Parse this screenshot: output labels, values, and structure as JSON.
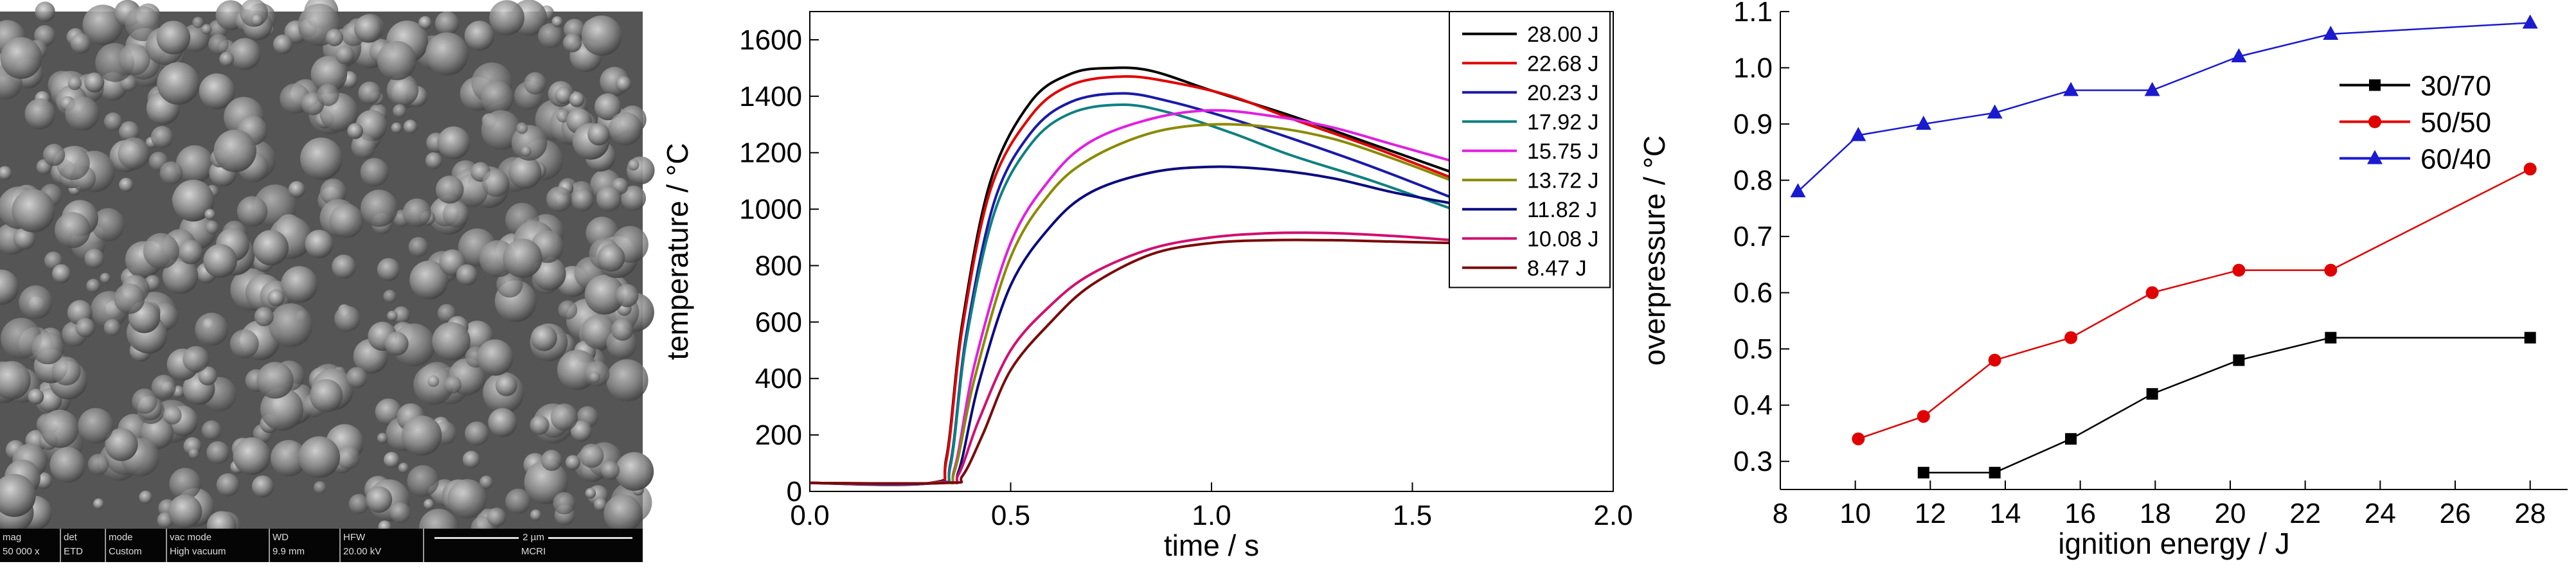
{
  "sem": {
    "info_labels": [
      "mag",
      "det",
      "mode",
      "vac mode",
      "WD",
      "HFW"
    ],
    "info_values": [
      "50 000 x",
      "ETD",
      "Custom",
      "High vacuum",
      "9.9 mm",
      "20.00 kV"
    ],
    "scale_label": "2 µm",
    "institution": "MCRI"
  },
  "chart_data": [
    {
      "type": "line",
      "xlabel": "time / s",
      "ylabel": "temperature / °C",
      "xlim": [
        0.0,
        2.0
      ],
      "ylim": [
        0,
        1700
      ],
      "xticks": [
        "0.0",
        "0.5",
        "1.0",
        "1.5",
        "2.0"
      ],
      "yticks": [
        "0",
        "200",
        "400",
        "600",
        "800",
        "1000",
        "1200",
        "1400",
        "1600"
      ],
      "legend_position": "top-right",
      "series": [
        {
          "name": "28.00 J",
          "color": "#000000",
          "x": [
            0,
            0.3,
            0.34,
            0.38,
            0.45,
            0.55,
            0.65,
            0.75,
            0.85,
            1.0,
            1.2,
            1.4,
            1.6
          ],
          "y": [
            30,
            30,
            120,
            600,
            1100,
            1380,
            1480,
            1500,
            1490,
            1420,
            1330,
            1230,
            1130
          ]
        },
        {
          "name": "22.68 J",
          "color": "#e00000",
          "x": [
            0,
            0.3,
            0.34,
            0.38,
            0.45,
            0.55,
            0.65,
            0.78,
            0.9,
            1.05,
            1.2,
            1.4,
            1.6
          ],
          "y": [
            30,
            30,
            110,
            580,
            1070,
            1330,
            1440,
            1470,
            1450,
            1400,
            1320,
            1220,
            1110
          ]
        },
        {
          "name": "20.23 J",
          "color": "#1a1aa8",
          "x": [
            0,
            0.31,
            0.35,
            0.39,
            0.46,
            0.55,
            0.65,
            0.78,
            0.9,
            1.05,
            1.2,
            1.4,
            1.6
          ],
          "y": [
            30,
            30,
            100,
            560,
            1030,
            1270,
            1380,
            1410,
            1380,
            1320,
            1250,
            1150,
            1040
          ]
        },
        {
          "name": "17.92 J",
          "color": "#0f8080",
          "x": [
            0,
            0.31,
            0.35,
            0.39,
            0.46,
            0.55,
            0.65,
            0.78,
            0.9,
            1.05,
            1.2,
            1.4,
            1.6
          ],
          "y": [
            30,
            30,
            90,
            540,
            990,
            1230,
            1340,
            1370,
            1340,
            1270,
            1190,
            1100,
            1000
          ]
        },
        {
          "name": "15.75 J",
          "color": "#e020e0",
          "x": [
            0,
            0.32,
            0.36,
            0.41,
            0.5,
            0.6,
            0.7,
            0.85,
            1.0,
            1.15,
            1.3,
            1.45,
            1.6
          ],
          "y": [
            30,
            30,
            80,
            450,
            880,
            1110,
            1240,
            1320,
            1350,
            1330,
            1290,
            1230,
            1170
          ]
        },
        {
          "name": "13.72 J",
          "color": "#8a8a00",
          "x": [
            0,
            0.32,
            0.36,
            0.41,
            0.5,
            0.6,
            0.7,
            0.85,
            1.0,
            1.15,
            1.3,
            1.45,
            1.6
          ],
          "y": [
            30,
            30,
            70,
            400,
            830,
            1060,
            1180,
            1270,
            1300,
            1290,
            1250,
            1180,
            1100
          ]
        },
        {
          "name": "11.82 J",
          "color": "#0b0b80",
          "x": [
            0,
            0.33,
            0.37,
            0.42,
            0.5,
            0.6,
            0.7,
            0.85,
            1.0,
            1.15,
            1.3,
            1.45,
            1.6
          ],
          "y": [
            30,
            30,
            70,
            380,
            730,
            940,
            1060,
            1130,
            1150,
            1140,
            1110,
            1060,
            1020
          ]
        },
        {
          "name": "10.08 J",
          "color": "#d01070",
          "x": [
            0,
            0.33,
            0.37,
            0.42,
            0.5,
            0.6,
            0.7,
            0.85,
            1.0,
            1.15,
            1.3,
            1.45,
            1.6
          ],
          "y": [
            30,
            30,
            60,
            250,
            500,
            660,
            770,
            860,
            900,
            915,
            915,
            905,
            890
          ]
        },
        {
          "name": "8.47 J",
          "color": "#7a0a0a",
          "x": [
            0,
            0.34,
            0.38,
            0.43,
            0.5,
            0.6,
            0.7,
            0.85,
            1.0,
            1.15,
            1.3,
            1.45,
            1.6
          ],
          "y": [
            30,
            30,
            55,
            200,
            430,
            600,
            730,
            840,
            880,
            890,
            890,
            885,
            880
          ]
        }
      ]
    },
    {
      "type": "line",
      "xlabel": "ignition energy / J",
      "ylabel": "overpressure / °C",
      "xlim": [
        8,
        29
      ],
      "ylim": [
        0.25,
        1.1
      ],
      "xticks": [
        "8",
        "10",
        "12",
        "14",
        "16",
        "18",
        "20",
        "22",
        "24",
        "26",
        "28"
      ],
      "yticks": [
        "0.3",
        "0.4",
        "0.5",
        "0.6",
        "0.7",
        "0.8",
        "0.9",
        "1.0",
        "1.1"
      ],
      "legend_position": "top-right",
      "series": [
        {
          "name": "30/70",
          "color": "#000000",
          "marker": "square",
          "x": [
            11.82,
            13.72,
            15.75,
            17.92,
            20.23,
            22.68,
            28.0
          ],
          "y": [
            0.28,
            0.28,
            0.34,
            0.42,
            0.48,
            0.52,
            0.52
          ]
        },
        {
          "name": "50/50",
          "color": "#e00000",
          "marker": "circle",
          "x": [
            10.08,
            11.82,
            13.72,
            15.75,
            17.92,
            20.23,
            22.68,
            28.0
          ],
          "y": [
            0.34,
            0.38,
            0.48,
            0.52,
            0.6,
            0.64,
            0.64,
            0.82
          ]
        },
        {
          "name": "60/40",
          "color": "#1a1ad0",
          "marker": "triangle",
          "x": [
            8.47,
            10.08,
            11.82,
            13.72,
            15.75,
            17.92,
            20.23,
            22.68,
            28.0
          ],
          "y": [
            0.78,
            0.88,
            0.9,
            0.92,
            0.96,
            0.96,
            1.02,
            1.06,
            1.08
          ]
        }
      ]
    }
  ]
}
